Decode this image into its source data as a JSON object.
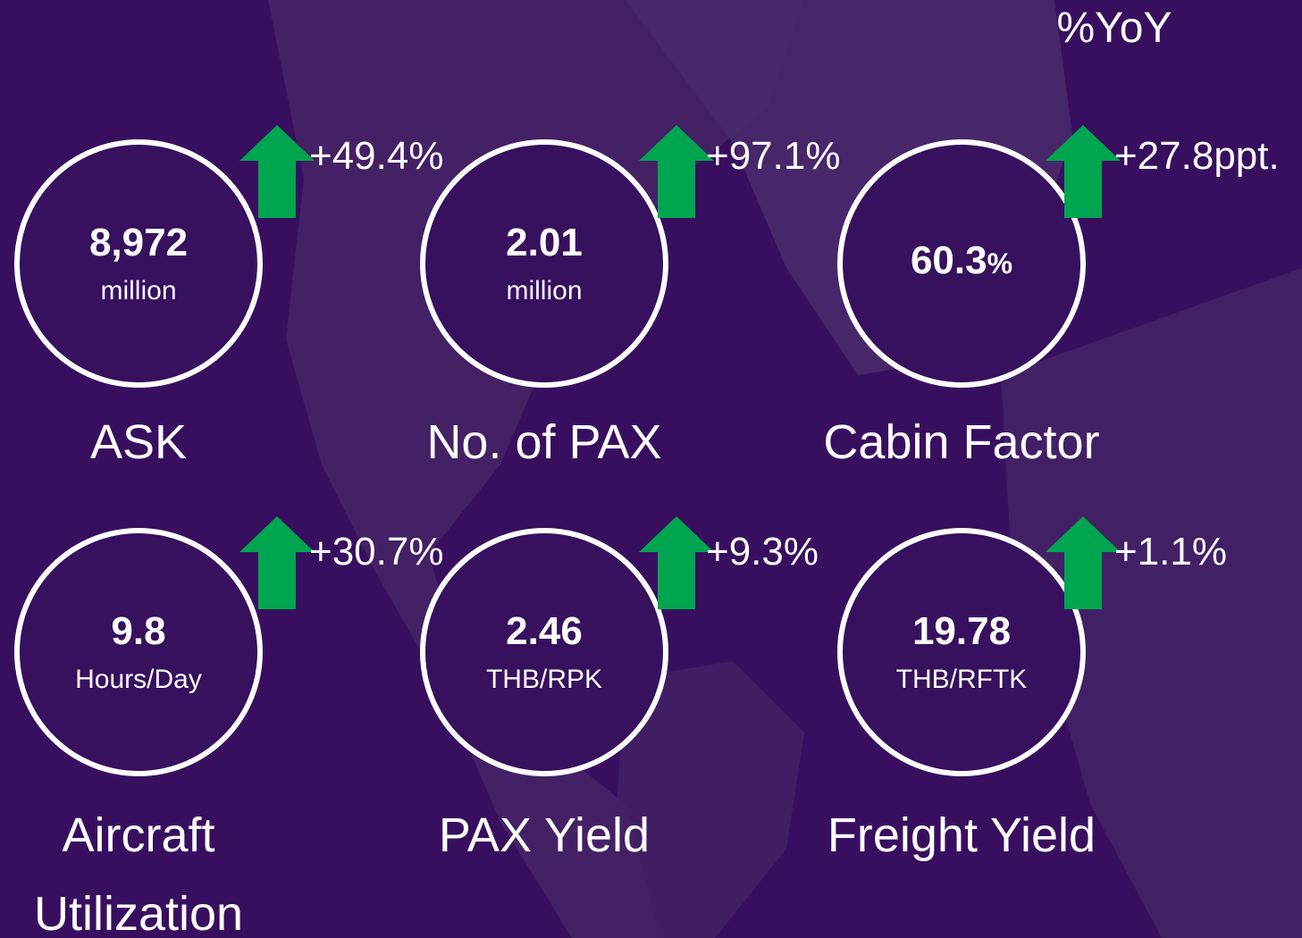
{
  "header": {
    "title": "%YoY"
  },
  "metrics": [
    {
      "value": "8,972",
      "unit": "million",
      "label": "ASK",
      "change": "+49.4%"
    },
    {
      "value": "2.01",
      "unit": "million",
      "label": "No. of PAX",
      "change": "+97.1%"
    },
    {
      "value": "60.3",
      "unit": "%",
      "label": "Cabin Factor",
      "change": "+27.8ppt."
    },
    {
      "value": "9.8",
      "unit": "Hours/Day",
      "label": "Aircraft Utilization",
      "change": "+30.7%"
    },
    {
      "value": "2.46",
      "unit": "THB/RPK",
      "label": "PAX Yield",
      "change": "+9.3%"
    },
    {
      "value": "19.78",
      "unit": "THB/RFTK",
      "label": "Freight Yield",
      "change": "+1.1%"
    }
  ]
}
